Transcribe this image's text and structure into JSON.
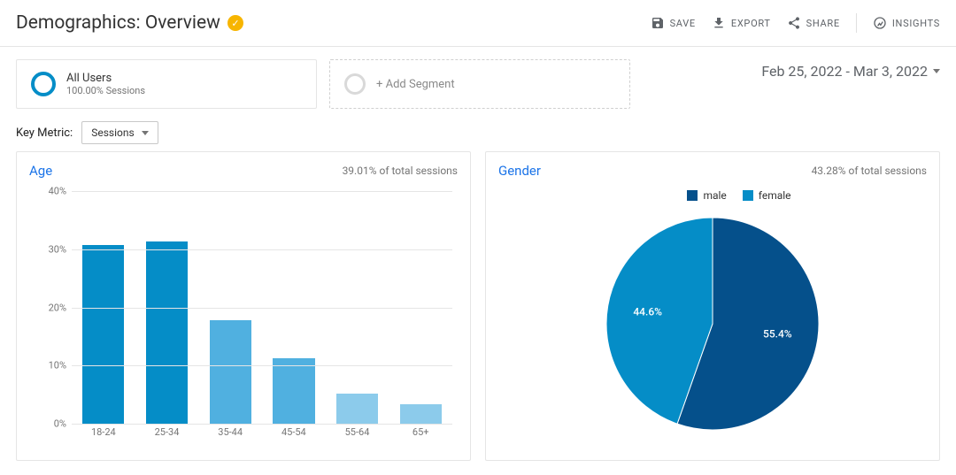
{
  "header": {
    "title": "Demographics: Overview",
    "verified": true,
    "actions": {
      "save": "SAVE",
      "export": "EXPORT",
      "share": "SHARE",
      "insights": "INSIGHTS"
    }
  },
  "segments": {
    "primary": {
      "title": "All Users",
      "sub": "100.00% Sessions",
      "ring_color": "#058dc7"
    },
    "add_label": "+ Add Segment"
  },
  "date_range": "Feb 25, 2022 - Mar 3, 2022",
  "key_metric": {
    "label": "Key Metric:",
    "value": "Sessions"
  },
  "age_chart": {
    "type": "bar",
    "title": "Age",
    "subtitle": "39.01% of total sessions",
    "categories": [
      "18-24",
      "25-34",
      "35-44",
      "45-54",
      "55-64",
      "65+"
    ],
    "values": [
      30.8,
      31.3,
      17.8,
      11.3,
      5.1,
      3.4
    ],
    "bar_colors": [
      "#058dc7",
      "#058dc7",
      "#50b0e0",
      "#50b0e0",
      "#8ccbeb",
      "#8ccbeb"
    ],
    "y_max": 40,
    "y_step": 10,
    "y_suffix": "%",
    "grid_color": "#e5e5e5",
    "axis_color": "#444444",
    "bar_width_pct": 66
  },
  "gender_chart": {
    "type": "pie",
    "title": "Gender",
    "subtitle": "43.28% of total sessions",
    "legend": [
      {
        "label": "male",
        "color": "#05508b"
      },
      {
        "label": "female",
        "color": "#058dc7"
      }
    ],
    "slices": [
      {
        "label": "55.4%",
        "value": 55.4,
        "color": "#05508b"
      },
      {
        "label": "44.6%",
        "value": 44.6,
        "color": "#058dc7"
      }
    ],
    "radius": 120,
    "start_angle_deg": 0
  },
  "colors": {
    "text_muted": "#757575",
    "border": "#e5e5e5",
    "link": "#1a73e8"
  }
}
